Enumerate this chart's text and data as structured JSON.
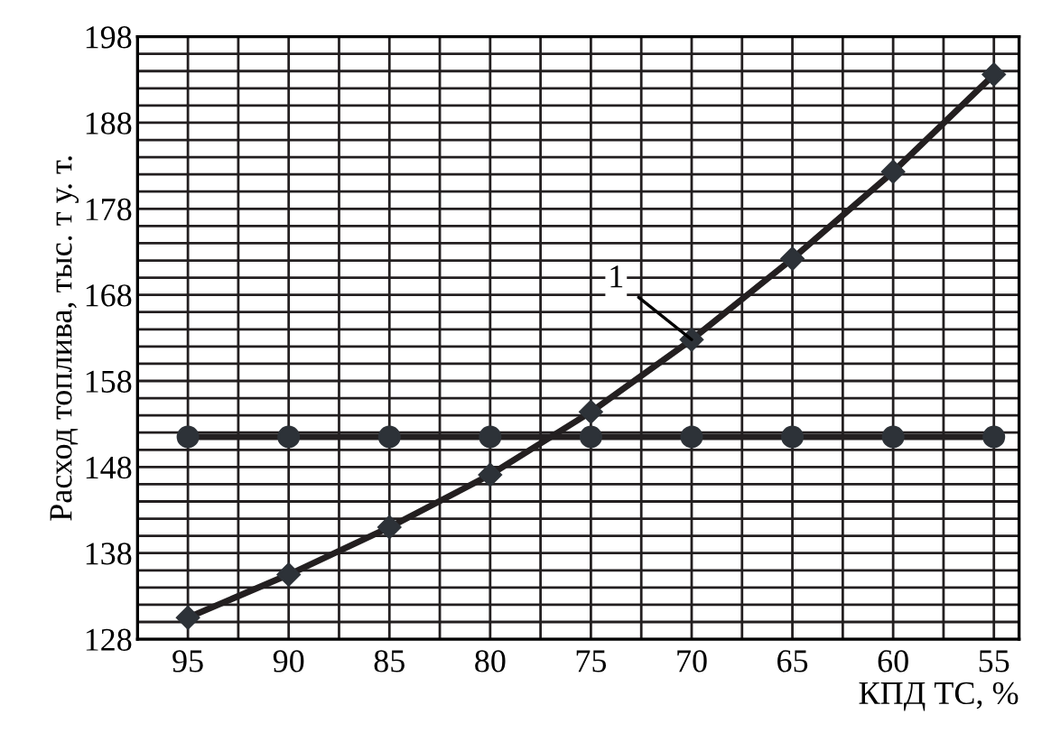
{
  "chart_data": {
    "type": "line",
    "xlabel": "КПД ТС, %",
    "ylabel": "Расход топлива, тыс. т у. т.",
    "categories": [
      "95",
      "90",
      "85",
      "80",
      "75",
      "70",
      "65",
      "60",
      "55"
    ],
    "series": [
      {
        "color": "#231f20",
        "marker": "diamond",
        "values": [
          130.5,
          135.5,
          141,
          147.1,
          154.4,
          162.8,
          172.2,
          182.3,
          193.6
        ]
      },
      {
        "color": "#231f20",
        "marker": "circle",
        "values": [
          151.5,
          151.5,
          151.5,
          151.5,
          151.5,
          151.5,
          151.5,
          151.5,
          151.5
        ]
      }
    ],
    "ylim": [
      128,
      198
    ],
    "yticks": [
      128,
      {
        "value": 130,
        "label": null
      },
      {
        "value": 132,
        "label": null
      },
      {
        "value": 134,
        "label": null
      },
      {
        "value": 136,
        "label": null
      },
      138,
      {
        "value": 140,
        "label": null
      },
      {
        "value": 142,
        "label": null
      },
      {
        "value": 144,
        "label": null
      },
      {
        "value": 146,
        "label": null
      },
      148,
      {
        "value": 150,
        "label": null
      },
      {
        "value": 152,
        "label": null
      },
      {
        "value": 154,
        "label": null
      },
      {
        "value": 156,
        "label": null
      },
      158,
      {
        "value": 160,
        "label": null
      },
      {
        "value": 162,
        "label": null
      },
      {
        "value": 164,
        "label": null
      },
      {
        "value": 166,
        "label": null
      },
      168,
      {
        "value": 170,
        "label": null
      },
      {
        "value": 172,
        "label": null
      },
      {
        "value": 174,
        "label": null
      },
      {
        "value": 176,
        "label": null
      },
      178,
      {
        "value": 180,
        "label": null
      },
      {
        "value": 182,
        "label": null
      },
      {
        "value": 184,
        "label": null
      },
      {
        "value": 186,
        "label": null
      },
      188,
      {
        "value": 190,
        "label": null
      },
      {
        "value": 192,
        "label": null
      },
      {
        "value": 194,
        "label": null
      },
      {
        "value": 196,
        "label": null
      },
      198
    ],
    "grid": true,
    "line_style": "solid",
    "legend": false,
    "annotations": [
      {
        "text": "1",
        "x": "70",
        "y": 162.8
      }
    ]
  }
}
